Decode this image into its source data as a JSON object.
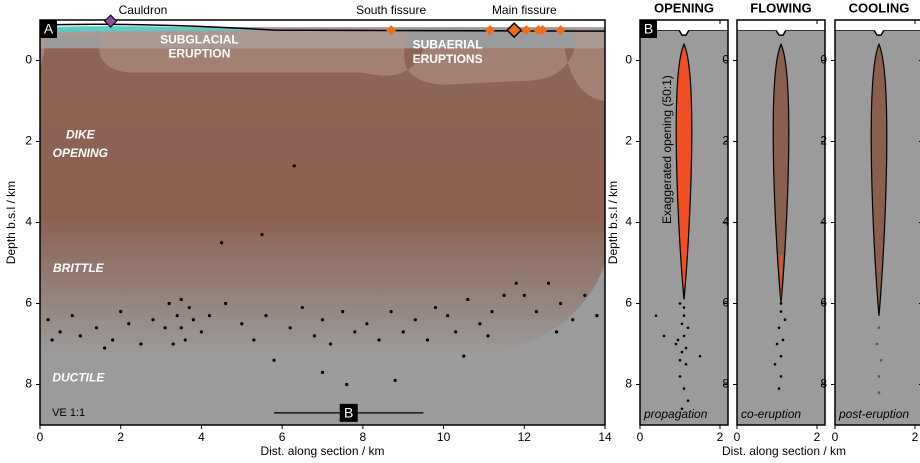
{
  "chart_data": [
    {
      "type": "section",
      "panel_label": "A",
      "xlabel": "Dist. along section / km",
      "ylabel": "Depth b.s.l / km",
      "xlim": [
        0,
        14
      ],
      "ylim": [
        9,
        -1
      ],
      "xticks": [
        0,
        2,
        4,
        6,
        8,
        10,
        12,
        14
      ],
      "yticks": [
        0,
        2,
        4,
        6,
        8
      ],
      "surface_depth": -0.75,
      "cauldron": {
        "label": "Cauldron",
        "x": 1.75,
        "color": "#8e4f9e"
      },
      "fissures": {
        "labels": [
          "South fissure",
          "Main fissure"
        ],
        "x": [
          8.7,
          11.15,
          11.75,
          12.05,
          12.35,
          12.45,
          12.9
        ],
        "color": "#f26a1b"
      },
      "zones": {
        "subglacial": [
          "SUBGLACIAL",
          "ERUPTION"
        ],
        "subaerial": [
          "SUBAERIAL",
          "ERUPTIONS"
        ],
        "dike": [
          "DIKE",
          "OPENING"
        ],
        "brittle": "BRITTLE",
        "ductile": "DUCTILE"
      },
      "ve": "VE 1:1",
      "b_section": {
        "label": "B",
        "x": [
          5.8,
          9.5
        ],
        "y": 8.7
      },
      "seismicity": {
        "color": "#000000",
        "x": [
          0.2,
          0.5,
          0.8,
          1.0,
          0.3,
          1.4,
          1.8,
          2.2,
          2.5,
          2.8,
          2.0,
          1.6,
          3.2,
          3.4,
          3.5,
          3.6,
          3.3,
          3.8,
          3.7,
          4.0,
          4.2,
          3.1,
          3.5,
          4.5,
          4.6,
          5.0,
          5.3,
          5.6,
          5.5,
          5.8,
          6.2,
          6.5,
          6.8,
          7.0,
          7.2,
          7.5,
          7.8,
          6.3,
          7.0,
          7.6,
          8.1,
          8.4,
          8.7,
          9.0,
          9.3,
          9.6,
          9.8,
          8.8,
          10.1,
          10.3,
          10.6,
          10.9,
          11.2,
          11.5,
          11.1,
          10.5,
          12.0,
          12.3,
          12.6,
          12.9,
          13.2,
          13.5,
          13.8,
          12.8,
          11.8
        ],
        "y": [
          6.4,
          6.7,
          6.3,
          6.8,
          6.9,
          6.6,
          6.9,
          6.5,
          7.0,
          6.4,
          6.2,
          7.1,
          6.0,
          6.3,
          6.6,
          6.9,
          7.0,
          6.4,
          6.1,
          6.7,
          6.3,
          6.6,
          5.9,
          4.5,
          6.0,
          6.5,
          6.9,
          6.3,
          4.3,
          7.4,
          6.6,
          6.1,
          6.8,
          6.4,
          7.0,
          6.2,
          6.7,
          2.6,
          7.7,
          8.0,
          6.5,
          6.9,
          6.2,
          6.7,
          6.4,
          6.9,
          6.1,
          7.9,
          6.3,
          6.7,
          5.9,
          6.5,
          6.2,
          5.8,
          6.8,
          7.3,
          5.8,
          6.2,
          5.5,
          6.0,
          6.4,
          5.8,
          6.3,
          6.7,
          5.5
        ]
      }
    },
    {
      "type": "dike",
      "panel_label": "B",
      "title": "OPENING",
      "caption": "propagation",
      "xlabel": "Dist. along section / km",
      "ylabel": "Depth b.s.l / km",
      "note": "Exaggerated opening (50:1)",
      "xlim": [
        0,
        2.2
      ],
      "ylim": [
        9,
        -1
      ],
      "xticks": [
        0,
        2
      ],
      "yticks": [
        0,
        2,
        4,
        6,
        8
      ],
      "surface_depth": -0.75,
      "dike": {
        "x": 1.1,
        "top": -0.4,
        "bottom": 5.9,
        "half_width": 0.25,
        "color": "#f04e23"
      },
      "seismicity": {
        "color": "#000000",
        "x": [
          1.0,
          1.1,
          1.2,
          0.95,
          1.05,
          1.15,
          1.0,
          1.1,
          1.2,
          1.05,
          0.9,
          1.1,
          1.0,
          1.15,
          1.05,
          1.1,
          0.4,
          0.6,
          1.5
        ],
        "y": [
          6.0,
          6.3,
          6.6,
          6.9,
          7.2,
          7.5,
          7.8,
          8.1,
          8.4,
          6.5,
          7.0,
          6.8,
          7.4,
          7.1,
          8.6,
          6.1,
          6.3,
          6.8,
          7.3
        ]
      }
    },
    {
      "type": "dike",
      "title": "FLOWING",
      "caption": "co-eruption",
      "xlim": [
        0,
        2.2
      ],
      "ylim": [
        9,
        -1
      ],
      "xticks": [
        0,
        2
      ],
      "yticks": [
        0,
        2,
        4,
        6,
        8
      ],
      "surface_depth": -0.75,
      "dike": {
        "x": 1.1,
        "top": -0.4,
        "bottom": 6.0,
        "half_width": 0.25,
        "color": "#8c5e4e"
      },
      "magma": {
        "top": 4.8,
        "bottom": 6.0,
        "color": "#f04e23"
      },
      "seismicity": {
        "color": "#000000",
        "x": [
          1.1,
          1.05,
          1.15,
          1.1,
          1.0,
          1.2,
          1.1,
          1.05,
          0.95,
          1.1
        ],
        "y": [
          6.2,
          6.6,
          6.9,
          7.3,
          7.0,
          6.4,
          7.8,
          8.1,
          7.5,
          6.0
        ]
      }
    },
    {
      "type": "dike",
      "title": "COOLING",
      "caption": "post-eruption",
      "xlim": [
        0,
        2.2
      ],
      "ylim": [
        9,
        -1
      ],
      "xticks": [
        0,
        2
      ],
      "yticks": [
        0,
        2,
        4,
        6,
        8
      ],
      "surface_depth": -0.75,
      "dike": {
        "x": 1.1,
        "top": -0.4,
        "bottom": 6.3,
        "half_width": 0.25,
        "color": "#8c5e4e"
      },
      "seismicity": {
        "color": "#555555",
        "x": [
          1.1,
          1.05,
          1.15,
          1.1,
          1.1
        ],
        "y": [
          6.6,
          7.0,
          7.4,
          7.8,
          8.2
        ]
      }
    }
  ]
}
